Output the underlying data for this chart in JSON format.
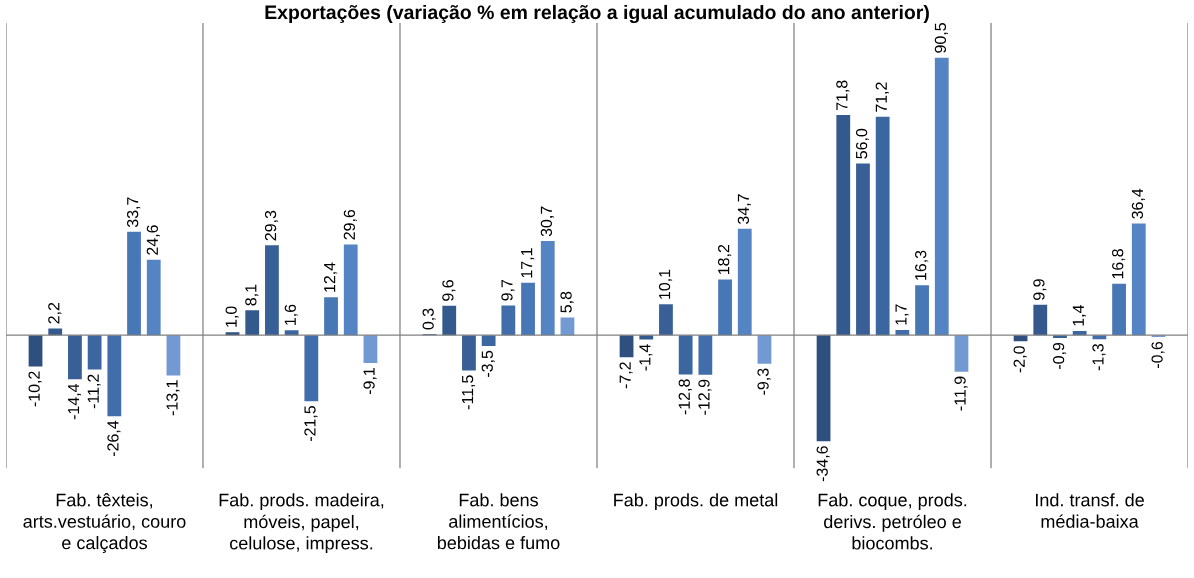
{
  "chart_data": {
    "type": "bar",
    "title": "Exportações (variação % em relação a igual acumulado do ano anterior)",
    "categories": [
      "Fab. têxteis,\narts.vestuário, couro\ne calçados",
      "Fab. prods. madeira,\nmóveis, papel,\ncelulose, impress.",
      "Fab. bens\nalimentícios,\nbebidas e fumo",
      "Fab. prods. de metal",
      "Fab. coque, prods.\nderivs. petróleo e\nbiocombs.",
      "Ind. transf. de\nmédia-baixa"
    ],
    "series": [
      {
        "color": "#2f4f7f",
        "values": [
          -10.2,
          1.0,
          0.3,
          -7.2,
          -34.6,
          -2.0
        ],
        "value_labels": [
          "-10,2",
          "1,0",
          "0,3",
          "-7,2",
          "-34,6",
          "-2,0"
        ]
      },
      {
        "color": "#34598c",
        "values": [
          2.2,
          8.1,
          9.6,
          -1.4,
          71.8,
          9.9
        ],
        "value_labels": [
          "2,2",
          "8,1",
          "9,6",
          "-1,4",
          "71,8",
          "9,9"
        ]
      },
      {
        "color": "#385f96",
        "values": [
          -14.4,
          29.3,
          -11.5,
          10.1,
          56.0,
          -0.9
        ],
        "value_labels": [
          "-14,4",
          "29,3",
          "-11,5",
          "10,1",
          "56,0",
          "-0,9"
        ]
      },
      {
        "color": "#3c66a0",
        "values": [
          -11.2,
          1.6,
          -3.5,
          -12.8,
          71.2,
          1.4
        ],
        "value_labels": [
          "-11,2",
          "1,6",
          "-3,5",
          "-12,8",
          "71,2",
          "1,4"
        ]
      },
      {
        "color": "#416daa",
        "values": [
          -26.4,
          -21.5,
          9.7,
          -12.9,
          1.7,
          -1.3
        ],
        "value_labels": [
          "-26,4",
          "-21,5",
          "9,7",
          "-12,9",
          "1,7",
          "-1,3"
        ]
      },
      {
        "color": "#4877b6",
        "values": [
          33.7,
          12.4,
          17.1,
          18.2,
          16.3,
          16.8
        ],
        "value_labels": [
          "33,7",
          "12,4",
          "17,1",
          "18,2",
          "16,3",
          "16,8"
        ]
      },
      {
        "color": "#5484c4",
        "values": [
          24.6,
          29.6,
          30.7,
          34.7,
          90.5,
          36.4
        ],
        "value_labels": [
          "24,6",
          "29,6",
          "30,7",
          "34,7",
          "90,5",
          "36,4"
        ]
      },
      {
        "color": "#7399d3",
        "values": [
          -13.1,
          -9.1,
          5.8,
          -9.3,
          -11.9,
          -0.6
        ],
        "value_labels": [
          "-13,1",
          "-9,1",
          "5,8",
          "-9,3",
          "-11,9",
          "-0,6"
        ]
      }
    ],
    "tick_labels": "x",
    "grid": false,
    "legend": false
  }
}
